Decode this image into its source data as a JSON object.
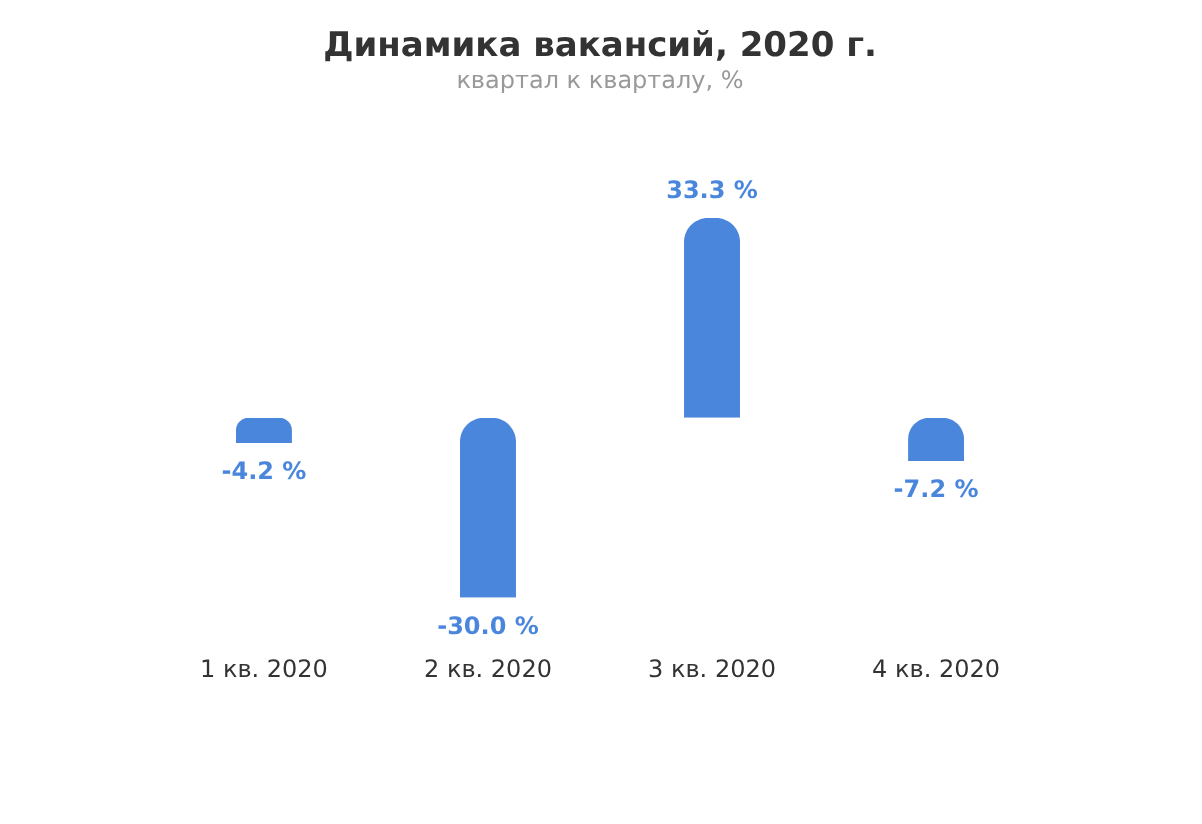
{
  "chart_data": {
    "type": "bar",
    "title": "Динамика вакансий, 2020 г.",
    "subtitle": "квартал к кварталу, %",
    "categories": [
      "1 кв. 2020",
      "2 кв. 2020",
      "3 кв. 2020",
      "4 кв. 2020"
    ],
    "values": [
      -4.2,
      -30.0,
      33.3,
      -7.2
    ],
    "value_labels": [
      "-4.2 %",
      "-30.0 %",
      "33.3 %",
      "-7.2 %"
    ],
    "color": "#4a87dc"
  }
}
